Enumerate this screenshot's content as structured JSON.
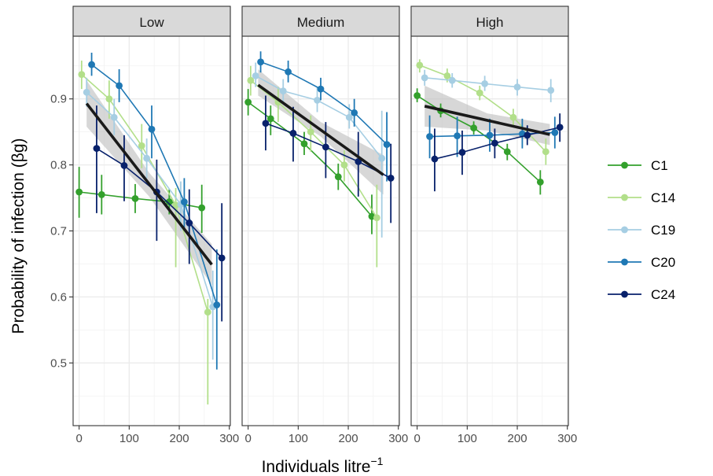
{
  "chart_data": {
    "type": "line",
    "xlabel": "Individuals litre",
    "xlabel_superscript": "−1",
    "ylabel": "Probability of infection (βg)",
    "xlim": [
      -12,
      302
    ],
    "ylim": [
      0.405,
      0.995
    ],
    "x_ticks": [
      0,
      100,
      200,
      300
    ],
    "y_ticks": [
      0.5,
      0.6,
      0.7,
      0.8,
      0.9
    ],
    "grid": true,
    "legend_position": "right",
    "colors": {
      "C1": "#33a02c",
      "C14": "#b2df8a",
      "C19": "#a6cee3",
      "C20": "#1f78b4",
      "C24": "#08216b",
      "trend": "#1a1a1a",
      "ribbon": "#bdbdbd",
      "strip_bg": "#d9d9d9"
    },
    "panels": [
      {
        "label": "Low",
        "trend": {
          "x": [
            15,
            265
          ],
          "y": [
            0.893,
            0.649
          ]
        },
        "ribbon": {
          "x": [
            15,
            140,
            265
          ],
          "lower": [
            0.858,
            0.752,
            0.618
          ],
          "upper": [
            0.928,
            0.788,
            0.68
          ]
        },
        "series": [
          {
            "name": "C1",
            "points": [
              {
                "x": 0,
                "y": 0.759,
                "lo": 0.72,
                "hi": 0.797
              },
              {
                "x": 45,
                "y": 0.755,
                "lo": 0.725,
                "hi": 0.785
              },
              {
                "x": 112,
                "y": 0.749,
                "lo": 0.727,
                "hi": 0.771
              },
              {
                "x": 180,
                "y": 0.744,
                "lo": 0.725,
                "hi": 0.763
              },
              {
                "x": 245,
                "y": 0.735,
                "lo": 0.697,
                "hi": 0.77
              }
            ]
          },
          {
            "name": "C14",
            "points": [
              {
                "x": 5,
                "y": 0.937,
                "lo": 0.915,
                "hi": 0.958
              },
              {
                "x": 60,
                "y": 0.9,
                "lo": 0.87,
                "hi": 0.928
              },
              {
                "x": 125,
                "y": 0.829,
                "lo": 0.795,
                "hi": 0.862
              },
              {
                "x": 193,
                "y": 0.739,
                "lo": 0.645,
                "hi": 0.765
              },
              {
                "x": 257,
                "y": 0.577,
                "lo": 0.437,
                "hi": 0.597
              }
            ]
          },
          {
            "name": "C19",
            "points": [
              {
                "x": 15,
                "y": 0.91,
                "lo": 0.888,
                "hi": 0.932
              },
              {
                "x": 70,
                "y": 0.872,
                "lo": 0.845,
                "hi": 0.9
              },
              {
                "x": 135,
                "y": 0.81,
                "lo": 0.78,
                "hi": 0.84
              },
              {
                "x": 203,
                "y": 0.74,
                "lo": 0.7,
                "hi": 0.775
              },
              {
                "x": 267,
                "y": 0.585,
                "lo": 0.505,
                "hi": 0.64
              }
            ]
          },
          {
            "name": "C20",
            "points": [
              {
                "x": 25,
                "y": 0.952,
                "lo": 0.935,
                "hi": 0.97
              },
              {
                "x": 80,
                "y": 0.92,
                "lo": 0.895,
                "hi": 0.945
              },
              {
                "x": 145,
                "y": 0.854,
                "lo": 0.81,
                "hi": 0.89
              },
              {
                "x": 210,
                "y": 0.744,
                "lo": 0.7,
                "hi": 0.78
              },
              {
                "x": 275,
                "y": 0.588,
                "lo": 0.49,
                "hi": 0.672
              }
            ]
          },
          {
            "name": "C24",
            "points": [
              {
                "x": 35,
                "y": 0.825,
                "lo": 0.727,
                "hi": 0.89
              },
              {
                "x": 90,
                "y": 0.799,
                "lo": 0.745,
                "hi": 0.845
              },
              {
                "x": 155,
                "y": 0.759,
                "lo": 0.685,
                "hi": 0.808
              },
              {
                "x": 220,
                "y": 0.712,
                "lo": 0.65,
                "hi": 0.763
              },
              {
                "x": 285,
                "y": 0.659,
                "lo": 0.563,
                "hi": 0.742
              }
            ]
          }
        ]
      },
      {
        "label": "Medium",
        "trend": {
          "x": [
            20,
            270
          ],
          "y": [
            0.921,
            0.785
          ]
        },
        "ribbon": {
          "x": [
            20,
            145,
            270
          ],
          "lower": [
            0.905,
            0.843,
            0.755
          ],
          "upper": [
            0.945,
            0.865,
            0.815
          ]
        },
        "series": [
          {
            "name": "C1",
            "points": [
              {
                "x": 0,
                "y": 0.895,
                "lo": 0.875,
                "hi": 0.915
              },
              {
                "x": 45,
                "y": 0.87,
                "lo": 0.845,
                "hi": 0.89
              },
              {
                "x": 112,
                "y": 0.832,
                "lo": 0.815,
                "hi": 0.85
              },
              {
                "x": 180,
                "y": 0.782,
                "lo": 0.762,
                "hi": 0.802
              },
              {
                "x": 247,
                "y": 0.722,
                "lo": 0.695,
                "hi": 0.755
              }
            ]
          },
          {
            "name": "C14",
            "points": [
              {
                "x": 5,
                "y": 0.928,
                "lo": 0.905,
                "hi": 0.95
              },
              {
                "x": 60,
                "y": 0.895,
                "lo": 0.865,
                "hi": 0.918
              },
              {
                "x": 125,
                "y": 0.85,
                "lo": 0.82,
                "hi": 0.875
              },
              {
                "x": 192,
                "y": 0.8,
                "lo": 0.775,
                "hi": 0.822
              },
              {
                "x": 257,
                "y": 0.72,
                "lo": 0.645,
                "hi": 0.77
              }
            ]
          },
          {
            "name": "C19",
            "points": [
              {
                "x": 15,
                "y": 0.935,
                "lo": 0.918,
                "hi": 0.955
              },
              {
                "x": 70,
                "y": 0.912,
                "lo": 0.895,
                "hi": 0.93
              },
              {
                "x": 138,
                "y": 0.898,
                "lo": 0.88,
                "hi": 0.918
              },
              {
                "x": 202,
                "y": 0.872,
                "lo": 0.855,
                "hi": 0.892
              },
              {
                "x": 267,
                "y": 0.81,
                "lo": 0.69,
                "hi": 0.882
              }
            ]
          },
          {
            "name": "C20",
            "points": [
              {
                "x": 25,
                "y": 0.956,
                "lo": 0.94,
                "hi": 0.972
              },
              {
                "x": 80,
                "y": 0.941,
                "lo": 0.925,
                "hi": 0.958
              },
              {
                "x": 145,
                "y": 0.915,
                "lo": 0.898,
                "hi": 0.932
              },
              {
                "x": 212,
                "y": 0.879,
                "lo": 0.858,
                "hi": 0.9
              },
              {
                "x": 277,
                "y": 0.831,
                "lo": 0.775,
                "hi": 0.88
              }
            ]
          },
          {
            "name": "C24",
            "points": [
              {
                "x": 35,
                "y": 0.863,
                "lo": 0.822,
                "hi": 0.905
              },
              {
                "x": 90,
                "y": 0.848,
                "lo": 0.805,
                "hi": 0.888
              },
              {
                "x": 155,
                "y": 0.827,
                "lo": 0.78,
                "hi": 0.865
              },
              {
                "x": 220,
                "y": 0.805,
                "lo": 0.752,
                "hi": 0.85
              },
              {
                "x": 285,
                "y": 0.78,
                "lo": 0.712,
                "hi": 0.832
              }
            ]
          }
        ]
      },
      {
        "label": "High",
        "trend": {
          "x": [
            15,
            265
          ],
          "y": [
            0.889,
            0.846
          ]
        },
        "ribbon": {
          "x": [
            15,
            140,
            265
          ],
          "lower": [
            0.858,
            0.852,
            0.83
          ],
          "upper": [
            0.92,
            0.878,
            0.862
          ]
        },
        "series": [
          {
            "name": "C1",
            "points": [
              {
                "x": 0,
                "y": 0.905,
                "lo": 0.895,
                "hi": 0.916
              },
              {
                "x": 47,
                "y": 0.882,
                "lo": 0.872,
                "hi": 0.893
              },
              {
                "x": 113,
                "y": 0.856,
                "lo": 0.846,
                "hi": 0.866
              },
              {
                "x": 180,
                "y": 0.82,
                "lo": 0.807,
                "hi": 0.832
              },
              {
                "x": 246,
                "y": 0.774,
                "lo": 0.755,
                "hi": 0.792
              }
            ]
          },
          {
            "name": "C14",
            "points": [
              {
                "x": 5,
                "y": 0.951,
                "lo": 0.94,
                "hi": 0.96
              },
              {
                "x": 60,
                "y": 0.935,
                "lo": 0.925,
                "hi": 0.946
              },
              {
                "x": 125,
                "y": 0.909,
                "lo": 0.898,
                "hi": 0.92
              },
              {
                "x": 192,
                "y": 0.872,
                "lo": 0.86,
                "hi": 0.885
              },
              {
                "x": 257,
                "y": 0.82,
                "lo": 0.8,
                "hi": 0.84
              }
            ]
          },
          {
            "name": "C19",
            "points": [
              {
                "x": 15,
                "y": 0.932,
                "lo": 0.92,
                "hi": 0.944
              },
              {
                "x": 70,
                "y": 0.928,
                "lo": 0.917,
                "hi": 0.939
              },
              {
                "x": 135,
                "y": 0.923,
                "lo": 0.912,
                "hi": 0.935
              },
              {
                "x": 200,
                "y": 0.918,
                "lo": 0.905,
                "hi": 0.93
              },
              {
                "x": 267,
                "y": 0.913,
                "lo": 0.895,
                "hi": 0.93
              }
            ]
          },
          {
            "name": "C20",
            "points": [
              {
                "x": 25,
                "y": 0.843,
                "lo": 0.81,
                "hi": 0.875
              },
              {
                "x": 80,
                "y": 0.844,
                "lo": 0.812,
                "hi": 0.873
              },
              {
                "x": 145,
                "y": 0.845,
                "lo": 0.82,
                "hi": 0.87
              },
              {
                "x": 210,
                "y": 0.847,
                "lo": 0.825,
                "hi": 0.87
              },
              {
                "x": 275,
                "y": 0.849,
                "lo": 0.825,
                "hi": 0.873
              }
            ]
          },
          {
            "name": "C24",
            "points": [
              {
                "x": 35,
                "y": 0.809,
                "lo": 0.76,
                "hi": 0.855
              },
              {
                "x": 90,
                "y": 0.819,
                "lo": 0.785,
                "hi": 0.852
              },
              {
                "x": 155,
                "y": 0.833,
                "lo": 0.81,
                "hi": 0.855
              },
              {
                "x": 220,
                "y": 0.845,
                "lo": 0.83,
                "hi": 0.86
              },
              {
                "x": 285,
                "y": 0.857,
                "lo": 0.835,
                "hi": 0.878
              }
            ]
          }
        ]
      }
    ]
  }
}
